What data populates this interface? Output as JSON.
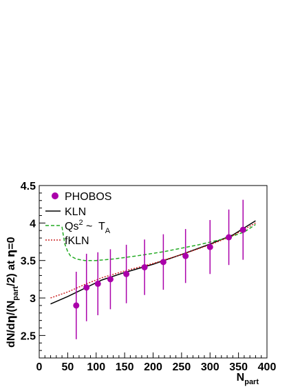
{
  "chart_data": {
    "type": "scatter",
    "xlabel": "N",
    "xlabel_sub": "part",
    "ylabel": {
      "p1": "dN/d",
      "eta1": "η",
      "p2": "/(N",
      "sub": "part",
      "p3": "/2) at ",
      "eta2": "η",
      "p4": "=0"
    },
    "xlim": [
      0,
      400
    ],
    "ylim": [
      2.2,
      4.5
    ],
    "x_ticks": [
      0,
      50,
      100,
      150,
      200,
      250,
      300,
      350,
      400
    ],
    "x_tick_labels": [
      "0",
      "50",
      "100",
      "150",
      "200",
      "250",
      "300",
      "350",
      "400"
    ],
    "y_ticks": [
      2.5,
      3,
      3.5,
      4,
      4.5
    ],
    "y_tick_labels": [
      "2.5",
      "3",
      "3.5",
      "4",
      "4.5"
    ],
    "legend_position": "top-left",
    "series": [
      {
        "name": "PHOBOS",
        "kind": "points",
        "color": "#aa00aa",
        "x": [
          65,
          83,
          103,
          125,
          153,
          185,
          218,
          257,
          300,
          333,
          358
        ],
        "y": [
          2.9,
          3.14,
          3.19,
          3.25,
          3.32,
          3.41,
          3.48,
          3.56,
          3.68,
          3.81,
          3.91
        ],
        "err": [
          0.45,
          0.45,
          0.42,
          0.4,
          0.39,
          0.37,
          0.37,
          0.36,
          0.36,
          0.37,
          0.4
        ]
      },
      {
        "name": "KLN",
        "kind": "line",
        "style": "solid",
        "color": "#000000",
        "x": [
          20,
          50,
          80,
          110,
          150,
          200,
          250,
          300,
          340,
          380
        ],
        "y": [
          2.92,
          3.02,
          3.13,
          3.24,
          3.34,
          3.45,
          3.58,
          3.72,
          3.84,
          4.03
        ]
      },
      {
        "name": "Qs",
        "name_sup": "2",
        "name_rest": " ~  T",
        "name_sub": "A",
        "kind": "line",
        "style": "dashed",
        "color": "#22aa22",
        "x": [
          40,
          42,
          45,
          50,
          55,
          65,
          80,
          100,
          130,
          170,
          220,
          280,
          330,
          360,
          380
        ],
        "y": [
          3.95,
          3.85,
          3.72,
          3.62,
          3.56,
          3.52,
          3.5,
          3.5,
          3.52,
          3.56,
          3.62,
          3.71,
          3.8,
          3.88,
          3.98
        ]
      },
      {
        "name": "fKLN",
        "kind": "line",
        "style": "dotted",
        "color": "#cc2222",
        "x": [
          20,
          50,
          80,
          110,
          150,
          200,
          250,
          300,
          340,
          380
        ],
        "y": [
          3.0,
          3.08,
          3.18,
          3.27,
          3.36,
          3.46,
          3.58,
          3.71,
          3.83,
          4.0
        ]
      }
    ]
  }
}
